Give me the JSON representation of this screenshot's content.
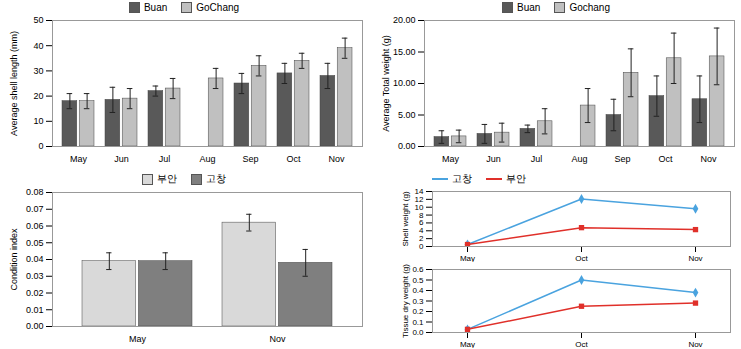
{
  "chart_data": [
    {
      "type": "bar",
      "ylabel": "Average shell length (mm)",
      "categories": [
        "May",
        "Jun",
        "Jul",
        "Aug",
        "Sep",
        "Oct",
        "Nov"
      ],
      "series": [
        {
          "name": "Buan",
          "color": "#595959",
          "values": [
            18,
            18.5,
            22,
            null,
            25,
            29,
            28
          ],
          "errors": [
            3,
            5,
            2,
            null,
            4,
            4,
            5
          ]
        },
        {
          "name": "GoChang",
          "color": "#c0c0c0",
          "values": [
            18,
            19,
            23,
            27,
            32,
            34,
            39
          ],
          "errors": [
            3,
            4,
            4,
            4,
            4,
            3,
            4
          ]
        }
      ],
      "ylim": [
        0,
        50
      ],
      "yticks": [
        0,
        10,
        20,
        30,
        40,
        50
      ],
      "grid": false,
      "legend": "top"
    },
    {
      "type": "bar",
      "ylabel": "Average Total weight (g)",
      "categories": [
        "May",
        "Jun",
        "Jul",
        "Aug",
        "Sep",
        "Oct",
        "Nov"
      ],
      "series": [
        {
          "name": "Buan",
          "color": "#595959",
          "values": [
            1.5,
            2.0,
            2.8,
            null,
            5.0,
            8.0,
            7.5
          ],
          "errors": [
            1.0,
            1.5,
            0.6,
            null,
            2.5,
            3.2,
            3.7
          ]
        },
        {
          "name": "Gochang",
          "color": "#c0c0c0",
          "values": [
            1.6,
            2.2,
            4.0,
            6.5,
            11.7,
            14.0,
            14.3
          ],
          "errors": [
            1.0,
            1.5,
            2.0,
            2.7,
            3.8,
            4.0,
            4.5
          ]
        }
      ],
      "ylim": [
        0,
        20
      ],
      "yticks": [
        {
          "value": 0,
          "label": "0.00"
        },
        {
          "value": 5,
          "label": "5.00"
        },
        {
          "value": 10,
          "label": "10.00"
        },
        {
          "value": 15,
          "label": "15.00"
        },
        {
          "value": 20,
          "label": "20.00"
        }
      ],
      "grid": false,
      "legend": "top"
    },
    {
      "type": "bar",
      "ylabel": "Condition index",
      "categories": [
        "May",
        "Nov"
      ],
      "series": [
        {
          "name": "부안",
          "color": "#d9d9d9",
          "values": [
            0.039,
            0.062
          ],
          "errors": [
            0.005,
            0.005
          ]
        },
        {
          "name": "고창",
          "color": "#7f7f7f",
          "values": [
            0.039,
            0.038
          ],
          "errors": [
            0.005,
            0.008
          ]
        }
      ],
      "ylim": [
        0,
        0.08
      ],
      "yticks": [
        {
          "value": 0,
          "label": "0.00"
        },
        {
          "value": 0.01,
          "label": "0.01"
        },
        {
          "value": 0.02,
          "label": "0.02"
        },
        {
          "value": 0.03,
          "label": "0.03"
        },
        {
          "value": 0.04,
          "label": "0.04"
        },
        {
          "value": 0.05,
          "label": "0.05"
        },
        {
          "value": 0.06,
          "label": "0.06"
        },
        {
          "value": 0.07,
          "label": "0.07"
        },
        {
          "value": 0.08,
          "label": "0.08"
        }
      ],
      "grid": false,
      "legend": "top"
    },
    {
      "type": "line",
      "ylabel": "Shell weight (g)",
      "categories": [
        "May",
        "Oct",
        "Nov"
      ],
      "series": [
        {
          "name": "고창",
          "color": "#4aa3df",
          "marker": "diamond",
          "values": [
            0.5,
            12.1,
            9.6
          ]
        },
        {
          "name": "부안",
          "color": "#e0302a",
          "marker": "square",
          "values": [
            0.5,
            4.8,
            4.3
          ]
        }
      ],
      "ylim": [
        0,
        14
      ],
      "yticks": [
        0,
        2,
        4,
        6,
        8,
        10,
        12,
        14
      ],
      "grid": false,
      "legend": "top-left"
    },
    {
      "type": "line",
      "ylabel": "Tissue dry weight (g)",
      "categories": [
        "May",
        "Oct",
        "Nov"
      ],
      "series": [
        {
          "name": "고창",
          "color": "#4aa3df",
          "marker": "diamond",
          "values": [
            0.03,
            0.5,
            0.38
          ]
        },
        {
          "name": "부안",
          "color": "#e0302a",
          "marker": "square",
          "values": [
            0.03,
            0.25,
            0.28
          ]
        }
      ],
      "ylim": [
        0,
        0.6
      ],
      "yticks": [
        {
          "value": 0,
          "label": "0.0"
        },
        {
          "value": 0.1,
          "label": "0.1"
        },
        {
          "value": 0.2,
          "label": "0.2"
        },
        {
          "value": 0.3,
          "label": "0.3"
        },
        {
          "value": 0.4,
          "label": "0.4"
        },
        {
          "value": 0.5,
          "label": "0.5"
        },
        {
          "value": 0.6,
          "label": "0.6"
        }
      ],
      "grid": false
    }
  ]
}
